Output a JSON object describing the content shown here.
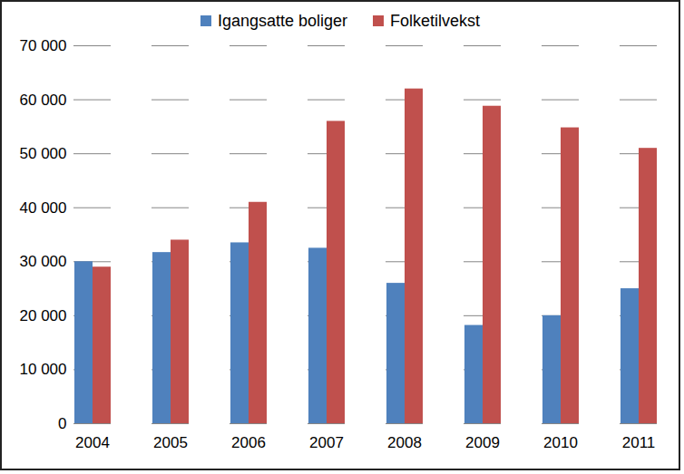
{
  "chart_data": {
    "type": "bar",
    "categories": [
      "2004",
      "2005",
      "2006",
      "2007",
      "2008",
      "2009",
      "2010",
      "2011"
    ],
    "series": [
      {
        "name": "Igangsatte boliger",
        "color": "#4F81BD",
        "values": [
          30000,
          31700,
          33500,
          32500,
          26000,
          18200,
          20000,
          25000
        ]
      },
      {
        "name": "Folketilvekst",
        "color": "#C0504D",
        "values": [
          29000,
          34000,
          41000,
          56000,
          62000,
          58800,
          54800,
          51000
        ]
      }
    ],
    "ylim": [
      0,
      70000
    ],
    "yticks": [
      0,
      {
        "value": 10000,
        "label": "10 000"
      },
      {
        "value": 20000,
        "label": "20 000"
      },
      {
        "value": 30000,
        "label": "30 000"
      },
      {
        "value": 40000,
        "label": "40 000"
      },
      {
        "value": 50000,
        "label": "50 000"
      },
      {
        "value": 60000,
        "label": "60 000"
      },
      {
        "value": 70000,
        "label": "70 000"
      }
    ],
    "grid": true,
    "legend": "top"
  }
}
